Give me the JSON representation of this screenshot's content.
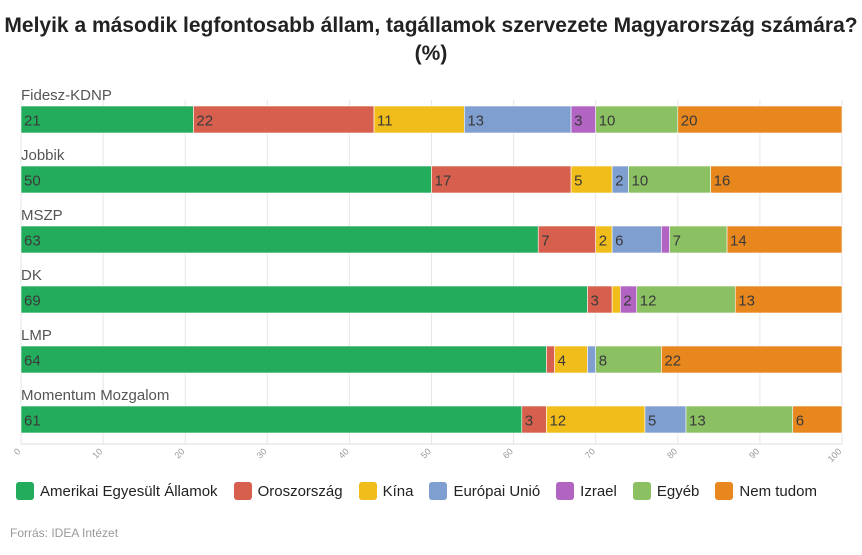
{
  "title": {
    "line1": "Melyik a második legfontosabb állam, tagállamok szervezete Magyarország számára?",
    "line2": "(%)"
  },
  "source": "Forrás: IDEA Intézet",
  "colors": {
    "Amerikai Egyesült Államok": "#23ac5c",
    "Oroszország": "#d6604d",
    "Kína": "#f1bd1a",
    "Európai Unió": "#7f9fd1",
    "Izrael": "#b164c1",
    "Egyéb": "#8bc063",
    "Nem tudom": "#e8871e"
  },
  "chart_data": {
    "type": "bar",
    "orientation": "horizontal",
    "stacked": true,
    "title": "Melyik a második legfontosabb állam, tagállamok szervezete Magyarország számára? (%)",
    "categories": [
      "Fidesz-KDNP",
      "Jobbik",
      "MSZP",
      "DK",
      "LMP",
      "Momentum Mozgalom"
    ],
    "series": [
      {
        "name": "Amerikai Egyesült Államok",
        "values": [
          21,
          50,
          63,
          69,
          64,
          61
        ]
      },
      {
        "name": "Oroszország",
        "values": [
          22,
          17,
          7,
          3,
          1,
          3
        ]
      },
      {
        "name": "Kína",
        "values": [
          11,
          5,
          2,
          1,
          4,
          12
        ]
      },
      {
        "name": "Európai Unió",
        "values": [
          13,
          2,
          6,
          0,
          1,
          5
        ]
      },
      {
        "name": "Izrael",
        "values": [
          3,
          0,
          1,
          2,
          0,
          0
        ]
      },
      {
        "name": "Egyéb",
        "values": [
          10,
          10,
          7,
          12,
          8,
          13
        ]
      },
      {
        "name": "Nem tudom",
        "values": [
          20,
          16,
          14,
          13,
          22,
          6
        ]
      }
    ],
    "xlim": [
      0,
      100
    ],
    "xticks": [
      0,
      10,
      20,
      30,
      40,
      50,
      60,
      70,
      80,
      90,
      100
    ],
    "grid": true,
    "legend_position": "bottom"
  }
}
